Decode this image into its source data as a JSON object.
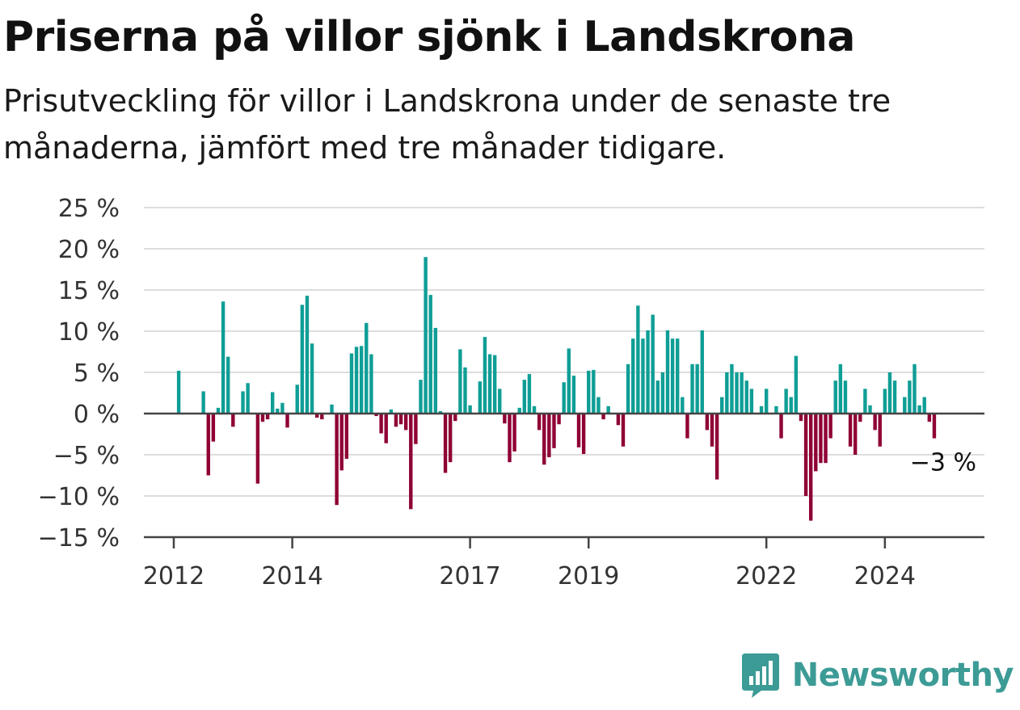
{
  "title": "Priserna på villor sjönk i Landskrona",
  "subtitle": "Prisutveckling för villor i Landskrona under de senaste tre månaderna, jämfört med tre månader tidigare.",
  "brand": "Newsworthy",
  "colors": {
    "positive": "#0f9e96",
    "negative": "#8f0035",
    "grid": "#dddddd",
    "axis": "#444444",
    "logo": "#3d9b96"
  },
  "chart_data": {
    "type": "bar",
    "xlabel": "",
    "ylabel": "",
    "ylim": [
      -15,
      25
    ],
    "yticks": [
      25,
      20,
      15,
      10,
      5,
      0,
      -5,
      -10,
      -15
    ],
    "ytick_labels": [
      "25 %",
      "20 %",
      "15 %",
      "10 %",
      "5 %",
      "0 %",
      "−5 %",
      "−10 %",
      "−15 %"
    ],
    "xtick_labels": [
      "2012",
      "2014",
      "2017",
      "2019",
      "2022",
      "2024"
    ],
    "end_label": "−3 %",
    "last_value": -3,
    "grid": true,
    "legend": "none",
    "series": [
      {
        "start_month": "2011-12",
        "values": [
          0,
          0,
          5.2,
          0,
          0,
          0,
          0,
          2.7,
          -7.5,
          -3.4,
          0.7,
          13.6,
          6.9,
          -1.6,
          0,
          2.7,
          3.7,
          0,
          -8.5,
          -1,
          -0.7,
          2.6,
          0.6,
          1.3,
          -1.7,
          0,
          3.5,
          13.2,
          14.3,
          8.5,
          -0.5,
          -0.7,
          0,
          1.1,
          -11.1,
          -6.9,
          -5.5,
          7.3,
          8.1,
          8.2,
          11,
          7.2,
          -0.3,
          -2.4,
          -3.6,
          0.5,
          -1.6,
          -1.3,
          -2,
          -11.6,
          -3.7,
          4.1,
          19,
          14.4,
          10.4,
          0.3,
          -7.2,
          -5.9,
          -0.9,
          7.8,
          5.6,
          1,
          0,
          3.9,
          9.3,
          7.2,
          7.1,
          3,
          -1.2,
          -5.9,
          -4.6,
          0.7,
          4.1,
          4.8,
          0.9,
          -2,
          -6.2,
          -5.3,
          -4.2,
          -1.3,
          3.8,
          7.9,
          4.6,
          -4.1,
          -4.9,
          5.2,
          5.3,
          2,
          -0.7,
          0.9,
          0,
          -1.4,
          -4,
          6,
          9.1,
          13.1,
          9.1,
          10.1,
          12,
          4,
          5,
          10.1,
          9.1,
          9.1,
          2,
          -3,
          6,
          6,
          10.1,
          -2,
          -4,
          -8,
          2,
          5,
          6,
          5,
          5,
          4,
          3,
          0,
          0.9,
          3,
          0,
          0.9,
          -3,
          3,
          2,
          7,
          -0.9,
          -10,
          -13,
          -7,
          -6,
          -6,
          -3,
          4,
          6,
          4,
          -4,
          -5,
          -1,
          3,
          1,
          -2,
          -4,
          3,
          5,
          4,
          0,
          2,
          4,
          6,
          1,
          2,
          -1,
          -3
        ]
      }
    ]
  }
}
